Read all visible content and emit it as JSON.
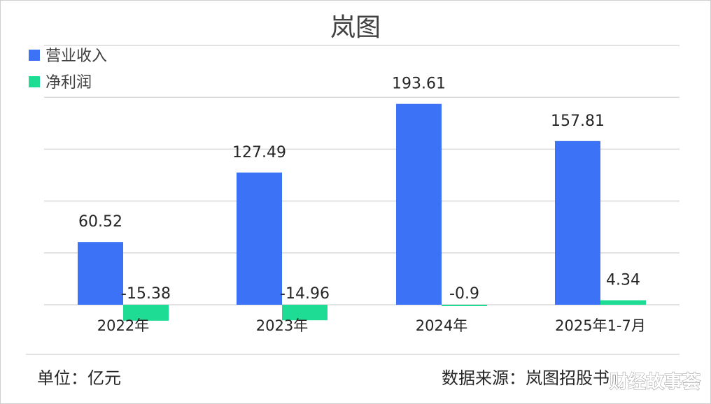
{
  "chart_data": {
    "type": "bar",
    "title": "岚图",
    "categories": [
      "2022年",
      "2023年",
      "2024年",
      "2025年1-7月"
    ],
    "series": [
      {
        "name": "营业收入",
        "values": [
          60.52,
          127.49,
          193.61,
          157.81
        ],
        "labels": [
          "60.52",
          "127.49",
          "193.61",
          "157.81"
        ],
        "color": "#3b72f6"
      },
      {
        "name": "净利润",
        "values": [
          -15.38,
          -14.96,
          -0.9,
          4.34
        ],
        "labels": [
          "-15.38",
          "-14.96",
          "-0.9",
          "4.34"
        ],
        "color": "#1edc94"
      }
    ],
    "ylim": [
      -25,
      250
    ],
    "grid": true,
    "legend": "top-left"
  },
  "footer": {
    "unit": "单位：亿元",
    "source": "数据来源：岚图招股书"
  },
  "watermark": "财经故事荟"
}
